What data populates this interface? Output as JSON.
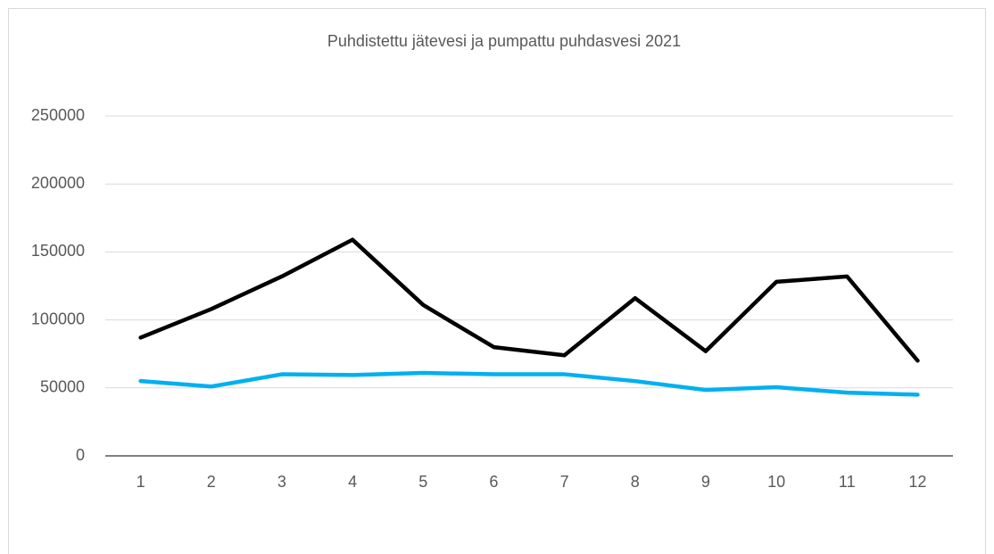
{
  "chart_data": {
    "type": "line",
    "title": "Puhdistettu jätevesi ja pumpattu puhdasvesi 2021",
    "categories": [
      1,
      2,
      3,
      4,
      5,
      6,
      7,
      8,
      9,
      10,
      11,
      12
    ],
    "series": [
      {
        "color": "#000000",
        "values": [
          87000,
          108000,
          132000,
          159000,
          111000,
          80000,
          74000,
          116000,
          77000,
          128000,
          132000,
          70000
        ]
      },
      {
        "color": "#00b0f0",
        "values": [
          55000,
          51000,
          60000,
          59500,
          61000,
          60000,
          60000,
          55000,
          48500,
          50500,
          46500,
          45000
        ]
      }
    ],
    "ylim": [
      0,
      250000
    ],
    "yticks": [
      0,
      50000,
      100000,
      150000,
      200000,
      250000
    ],
    "grid": true
  }
}
